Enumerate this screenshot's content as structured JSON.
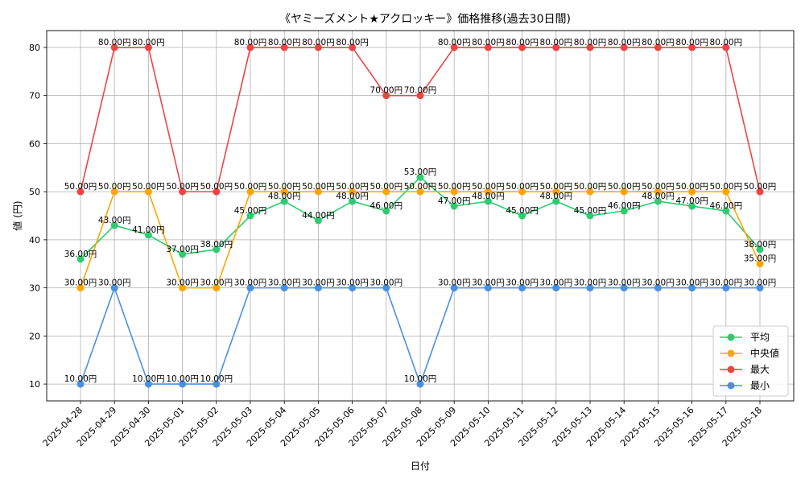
{
  "chart_data": {
    "type": "line",
    "title": "《ヤミーズメント★アクロッキー》価格推移(過去30日間)",
    "xlabel": "日付",
    "ylabel": "値 (円)",
    "ylim": [
      6.5,
      83.5
    ],
    "yticks": [
      10,
      20,
      30,
      40,
      50,
      60,
      70,
      80
    ],
    "grid": true,
    "legend_position": "lower-right",
    "label_unit": "円",
    "categories": [
      "2025-04-28",
      "2025-04-29",
      "2025-04-30",
      "2025-05-01",
      "2025-05-02",
      "2025-05-03",
      "2025-05-04",
      "2025-05-05",
      "2025-05-06",
      "2025-05-07",
      "2025-05-08",
      "2025-05-09",
      "2025-05-10",
      "2025-05-11",
      "2025-05-12",
      "2025-05-13",
      "2025-05-14",
      "2025-05-15",
      "2025-05-16",
      "2025-05-17",
      "2025-05-18"
    ],
    "series": [
      {
        "name": "平均",
        "color": "#2ecc71",
        "values": [
          36,
          43,
          41,
          37,
          38,
          45,
          48,
          44,
          48,
          46,
          53,
          47,
          48,
          45,
          48,
          45,
          46,
          48,
          47,
          46,
          38
        ]
      },
      {
        "name": "中央値",
        "color": "#ffa500",
        "values": [
          30,
          50,
          50,
          30,
          30,
          50,
          50,
          50,
          50,
          50,
          50,
          50,
          50,
          50,
          50,
          50,
          50,
          50,
          50,
          50,
          35
        ]
      },
      {
        "name": "最大",
        "color": "#ef4444",
        "values": [
          50,
          80,
          80,
          50,
          50,
          80,
          80,
          80,
          80,
          70,
          70,
          80,
          80,
          80,
          80,
          80,
          80,
          80,
          80,
          80,
          50
        ]
      },
      {
        "name": "最小",
        "color": "#4a90e2",
        "values": [
          10,
          30,
          10,
          10,
          10,
          30,
          30,
          30,
          30,
          30,
          10,
          30,
          30,
          30,
          30,
          30,
          30,
          30,
          30,
          30,
          30
        ]
      }
    ]
  }
}
